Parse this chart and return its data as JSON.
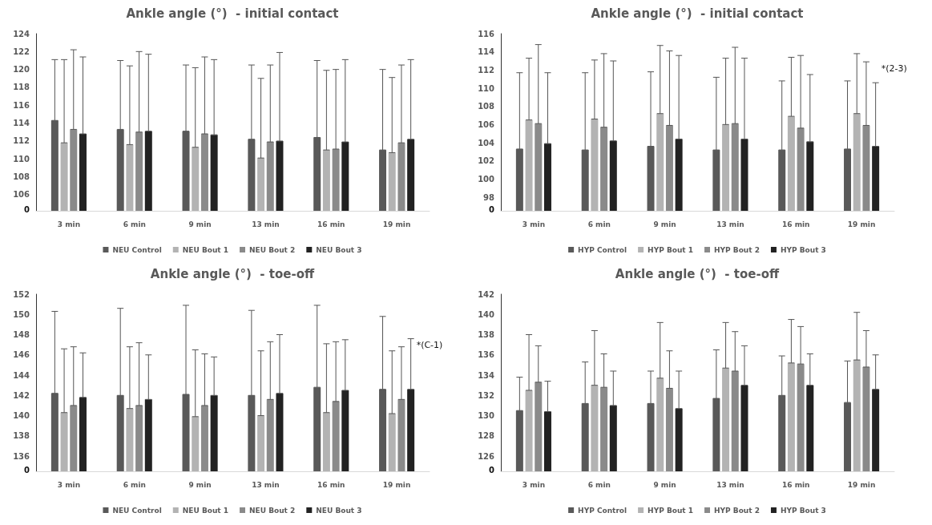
{
  "chart_data": [
    {
      "type": "bar",
      "title": "Ankle angle (°)  - initial contact",
      "categories": [
        "3 min",
        "6 min",
        "9 min",
        "13 min",
        "16 min",
        "19 min"
      ],
      "ylim": [
        104.2,
        124
      ],
      "annotations": [
        "0"
      ],
      "yticks": [
        106,
        108,
        110,
        112,
        114,
        116,
        118,
        120,
        122,
        124
      ],
      "legend": "bottom",
      "grid": false,
      "series": [
        {
          "name": "NEU Control",
          "color": "#595959",
          "values": [
            114.3,
            113.3,
            113.1,
            112.2,
            112.4,
            111.0
          ],
          "errors": [
            [
              114.3,
              121.1
            ],
            [
              113.3,
              121.0
            ],
            [
              113.1,
              120.5
            ],
            [
              112.2,
              120.5
            ],
            [
              112.4,
              121.0
            ],
            [
              111.0,
              120.0
            ]
          ]
        },
        {
          "name": "NEU Bout 1",
          "color": "#b3b3b3",
          "values": [
            111.8,
            111.6,
            111.3,
            110.1,
            111.0,
            110.7
          ],
          "errors": [
            [
              111.8,
              121.1
            ],
            [
              111.6,
              120.4
            ],
            [
              111.3,
              120.2
            ],
            [
              110.1,
              119.0
            ],
            [
              111.0,
              119.9
            ],
            [
              110.7,
              119.1
            ]
          ]
        },
        {
          "name": "NEU Bout 2",
          "color": "#8a8a8a",
          "values": [
            113.3,
            113.0,
            112.8,
            111.9,
            111.1,
            111.8
          ],
          "errors": [
            [
              113.3,
              122.2
            ],
            [
              113.0,
              122.0
            ],
            [
              112.8,
              121.4
            ],
            [
              111.9,
              120.5
            ],
            [
              111.1,
              120.0
            ],
            [
              111.8,
              120.5
            ]
          ]
        },
        {
          "name": "NEU Bout 3",
          "color": "#222222",
          "values": [
            112.8,
            113.1,
            112.7,
            112.0,
            111.9,
            112.2
          ],
          "errors": [
            [
              112.8,
              121.4
            ],
            [
              113.1,
              121.7
            ],
            [
              112.7,
              121.1
            ],
            [
              112.0,
              121.9
            ],
            [
              111.9,
              121.1
            ],
            [
              112.2,
              121.1
            ]
          ]
        }
      ]
    },
    {
      "type": "bar",
      "title": "Ankle angle (°)  - initial contact",
      "categories": [
        "3 min",
        "6 min",
        "9 min",
        "13 min",
        "16 min",
        "19 min"
      ],
      "ylim": [
        96.5,
        116
      ],
      "yticks": [
        98,
        100,
        102,
        104,
        106,
        108,
        110,
        112,
        114,
        116
      ],
      "legend": "bottom",
      "grid": false,
      "annotations": [
        "0",
        "*(2-3)"
      ],
      "series": [
        {
          "name": "HYP Control",
          "color": "#595959",
          "values": [
            103.3,
            103.2,
            103.6,
            103.2,
            103.2,
            103.3
          ],
          "errors": [
            [
              103.3,
              111.7
            ],
            [
              103.2,
              111.7
            ],
            [
              103.6,
              111.8
            ],
            [
              103.2,
              111.2
            ],
            [
              103.2,
              110.8
            ],
            [
              103.3,
              110.8
            ]
          ]
        },
        {
          "name": "HYP Bout 1",
          "color": "#b3b3b3",
          "values": [
            106.5,
            106.6,
            107.2,
            106.0,
            106.9,
            107.2
          ],
          "errors": [
            [
              106.5,
              113.3
            ],
            [
              106.6,
              113.1
            ],
            [
              107.2,
              114.7
            ],
            [
              106.0,
              113.3
            ],
            [
              106.9,
              113.4
            ],
            [
              107.2,
              113.8
            ]
          ]
        },
        {
          "name": "HYP Bout 2",
          "color": "#8a8a8a",
          "values": [
            106.1,
            105.7,
            105.9,
            106.1,
            105.6,
            105.9
          ],
          "errors": [
            [
              106.1,
              114.8
            ],
            [
              105.7,
              113.8
            ],
            [
              105.9,
              114.1
            ],
            [
              106.1,
              114.5
            ],
            [
              105.6,
              113.6
            ],
            [
              105.9,
              112.9
            ]
          ]
        },
        {
          "name": "HYP Bout 3",
          "color": "#222222",
          "values": [
            103.9,
            104.2,
            104.4,
            104.4,
            104.1,
            103.6
          ],
          "errors": [
            [
              103.9,
              111.7
            ],
            [
              104.2,
              113.0
            ],
            [
              104.4,
              113.6
            ],
            [
              104.4,
              113.3
            ],
            [
              104.1,
              111.5
            ],
            [
              103.6,
              110.6
            ]
          ]
        }
      ]
    },
    {
      "type": "bar",
      "title": "Ankle angle (°)  - toe-off",
      "categories": [
        "3 min",
        "6 min",
        "9 min",
        "13 min",
        "16 min",
        "19 min"
      ],
      "ylim": [
        134.5,
        152
      ],
      "yticks": [
        136,
        138,
        140,
        142,
        144,
        146,
        148,
        150,
        152
      ],
      "legend": "bottom",
      "grid": false,
      "annotations": [
        "0",
        "*(C-1)"
      ],
      "series": [
        {
          "name": "NEU Control",
          "color": "#595959",
          "values": [
            142.2,
            142.0,
            142.1,
            142.0,
            142.8,
            142.6
          ],
          "errors": [
            [
              142.2,
              150.3
            ],
            [
              142.0,
              150.6
            ],
            [
              142.1,
              150.9
            ],
            [
              142.0,
              150.4
            ],
            [
              142.8,
              150.9
            ],
            [
              142.6,
              149.8
            ]
          ]
        },
        {
          "name": "NEU Bout 1",
          "color": "#b3b3b3",
          "values": [
            140.3,
            140.7,
            139.9,
            140.0,
            140.3,
            140.2
          ],
          "errors": [
            [
              140.3,
              146.6
            ],
            [
              140.7,
              146.8
            ],
            [
              139.9,
              146.5
            ],
            [
              140.0,
              146.4
            ],
            [
              140.3,
              147.1
            ],
            [
              140.2,
              146.4
            ]
          ]
        },
        {
          "name": "NEU Bout 2",
          "color": "#8a8a8a",
          "values": [
            141.0,
            141.0,
            141.0,
            141.6,
            141.4,
            141.6
          ],
          "errors": [
            [
              141.0,
              146.8
            ],
            [
              141.0,
              147.2
            ],
            [
              141.0,
              146.1
            ],
            [
              141.6,
              147.3
            ],
            [
              141.4,
              147.3
            ],
            [
              141.6,
              146.8
            ]
          ]
        },
        {
          "name": "NEU Bout 3",
          "color": "#222222",
          "values": [
            141.8,
            141.6,
            142.0,
            142.2,
            142.5,
            142.6
          ],
          "errors": [
            [
              141.8,
              146.2
            ],
            [
              141.6,
              146.0
            ],
            [
              142.0,
              145.8
            ],
            [
              142.2,
              148.0
            ],
            [
              142.5,
              147.5
            ],
            [
              142.6,
              147.6
            ]
          ]
        }
      ]
    },
    {
      "type": "bar",
      "title": "Ankle angle (°)  - toe-off",
      "categories": [
        "3 min",
        "6 min",
        "9 min",
        "13 min",
        "16 min",
        "19 min"
      ],
      "ylim": [
        124.5,
        142
      ],
      "annotations": [
        "0"
      ],
      "yticks": [
        126,
        128,
        130,
        132,
        134,
        136,
        138,
        140,
        142
      ],
      "legend": "bottom",
      "grid": false,
      "series": [
        {
          "name": "HYP Control",
          "color": "#595959",
          "values": [
            130.5,
            131.2,
            131.2,
            131.7,
            132.0,
            131.3
          ],
          "errors": [
            [
              130.5,
              133.8
            ],
            [
              131.2,
              135.3
            ],
            [
              131.2,
              134.4
            ],
            [
              131.7,
              136.5
            ],
            [
              132.0,
              135.9
            ],
            [
              131.3,
              135.4
            ]
          ]
        },
        {
          "name": "HYP Bout 1",
          "color": "#b3b3b3",
          "values": [
            132.5,
            133.0,
            133.7,
            134.7,
            135.2,
            135.5
          ],
          "errors": [
            [
              132.5,
              138.0
            ],
            [
              133.0,
              138.4
            ],
            [
              133.7,
              139.2
            ],
            [
              134.7,
              139.2
            ],
            [
              135.2,
              139.5
            ],
            [
              135.5,
              140.2
            ]
          ]
        },
        {
          "name": "HYP Bout 2",
          "color": "#8a8a8a",
          "values": [
            133.3,
            132.8,
            132.7,
            134.4,
            135.1,
            134.8
          ],
          "errors": [
            [
              133.3,
              136.9
            ],
            [
              132.8,
              136.1
            ],
            [
              132.7,
              136.4
            ],
            [
              134.4,
              138.3
            ],
            [
              135.1,
              138.8
            ],
            [
              134.8,
              138.4
            ]
          ]
        },
        {
          "name": "HYP Bout 3",
          "color": "#222222",
          "values": [
            130.4,
            131.0,
            130.7,
            133.0,
            133.0,
            132.6
          ],
          "errors": [
            [
              130.4,
              133.4
            ],
            [
              131.0,
              134.4
            ],
            [
              130.7,
              134.4
            ],
            [
              133.0,
              136.9
            ],
            [
              133.0,
              136.1
            ],
            [
              132.6,
              136.0
            ]
          ]
        }
      ]
    }
  ]
}
